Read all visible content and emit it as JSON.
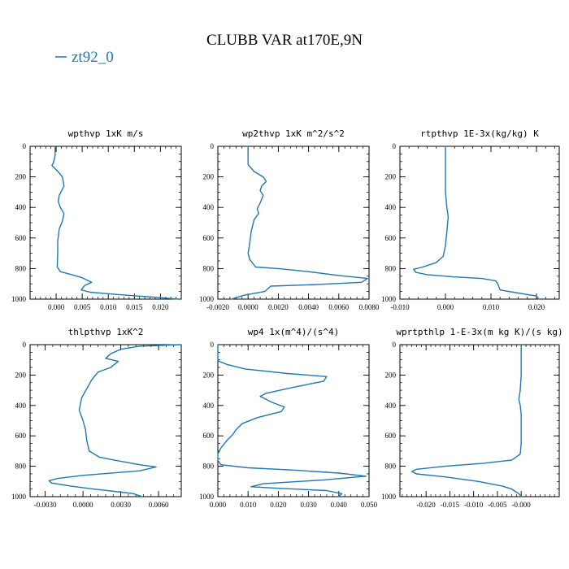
{
  "title": "CLUBB VAR at170E,9N",
  "legend": [
    {
      "label": "zt92_0",
      "color": "#1f77b4"
    }
  ],
  "chart_data": [
    {
      "type": "line",
      "title": "wpthvp  1xK m/s",
      "xlim": [
        -0.005,
        0.024
      ],
      "ylim": [
        0,
        1000
      ],
      "xticks": [
        0.0,
        0.005,
        0.01,
        0.015,
        0.02
      ],
      "xtick_labels": [
        "0.000",
        "0.005",
        "0.010",
        "0.015",
        "0.020"
      ],
      "yticks": [
        0,
        200,
        400,
        600,
        800,
        1000
      ],
      "series": [
        {
          "color": "#1f77b4",
          "points": [
            [
              -0.0002,
              0
            ],
            [
              -0.0002,
              60
            ],
            [
              -0.0005,
              105
            ],
            [
              -0.0008,
              125
            ],
            [
              0.0002,
              160
            ],
            [
              0.0012,
              200
            ],
            [
              0.0015,
              260
            ],
            [
              0.0006,
              320
            ],
            [
              0.0004,
              360
            ],
            [
              0.0008,
              400
            ],
            [
              0.0015,
              440
            ],
            [
              0.0012,
              490
            ],
            [
              0.0006,
              540
            ],
            [
              0.0003,
              620
            ],
            [
              0.0003,
              700
            ],
            [
              0.0002,
              790
            ],
            [
              0.0008,
              820
            ],
            [
              0.003,
              840
            ],
            [
              0.005,
              860
            ],
            [
              0.0068,
              890
            ],
            [
              0.0055,
              910
            ],
            [
              0.0048,
              940
            ],
            [
              0.0065,
              955
            ],
            [
              0.012,
              970
            ],
            [
              0.018,
              985
            ],
            [
              0.0235,
              1000
            ]
          ]
        }
      ]
    },
    {
      "type": "line",
      "title": "wp2thvp  1xK m^2/s^2",
      "xlim": [
        -0.002,
        0.008
      ],
      "ylim": [
        0,
        1000
      ],
      "xticks": [
        -0.002,
        0.0,
        0.002,
        0.004,
        0.006,
        0.008
      ],
      "xtick_labels": [
        "-0.0020",
        "0.0000",
        "0.0020",
        "0.0040",
        "0.0060",
        "0.0080"
      ],
      "yticks": [
        0,
        200,
        400,
        600,
        800,
        1000
      ],
      "series": [
        {
          "color": "#1f77b4",
          "points": [
            [
              0.0,
              0
            ],
            [
              0.0,
              60
            ],
            [
              0.0,
              120
            ],
            [
              0.0004,
              165
            ],
            [
              0.001,
              200
            ],
            [
              0.0012,
              230
            ],
            [
              0.0009,
              260
            ],
            [
              0.0008,
              290
            ],
            [
              0.001,
              320
            ],
            [
              0.0008,
              370
            ],
            [
              0.0006,
              410
            ],
            [
              0.0007,
              440
            ],
            [
              0.0004,
              480
            ],
            [
              0.0002,
              560
            ],
            [
              0.0001,
              640
            ],
            [
              0.0,
              700
            ],
            [
              0.0001,
              740
            ],
            [
              0.0005,
              790
            ],
            [
              0.002,
              800
            ],
            [
              0.004,
              820
            ],
            [
              0.006,
              845
            ],
            [
              0.0079,
              865
            ],
            [
              0.0075,
              890
            ],
            [
              0.0045,
              905
            ],
            [
              0.0015,
              915
            ],
            [
              0.0011,
              950
            ],
            [
              -0.0003,
              975
            ],
            [
              -0.0011,
              1000
            ]
          ]
        }
      ]
    },
    {
      "type": "line",
      "title": "rtpthvp  1E-3x(kg/kg) K",
      "xlim": [
        -0.01,
        0.025
      ],
      "ylim": [
        0,
        1000
      ],
      "xticks": [
        -0.01,
        0.0,
        0.01,
        0.02
      ],
      "xtick_labels": [
        "-0.010",
        "0.000",
        "0.010",
        "0.020"
      ],
      "yticks": [
        0,
        200,
        400,
        600,
        800,
        1000
      ],
      "series": [
        {
          "color": "#1f77b4",
          "points": [
            [
              0.0,
              0
            ],
            [
              0.0,
              100
            ],
            [
              0.0,
              200
            ],
            [
              0.0,
              300
            ],
            [
              0.0003,
              400
            ],
            [
              0.0006,
              460
            ],
            [
              0.0003,
              560
            ],
            [
              0.0,
              650
            ],
            [
              -0.0005,
              720
            ],
            [
              -0.002,
              760
            ],
            [
              -0.005,
              790
            ],
            [
              -0.007,
              805
            ],
            [
              -0.0065,
              825
            ],
            [
              -0.004,
              840
            ],
            [
              0.002,
              855
            ],
            [
              0.008,
              865
            ],
            [
              0.011,
              880
            ],
            [
              0.0115,
              900
            ],
            [
              0.012,
              940
            ],
            [
              0.016,
              960
            ],
            [
              0.02,
              980
            ],
            [
              0.0205,
              1000
            ]
          ]
        }
      ]
    },
    {
      "type": "line",
      "title": "thlpthvp  1xK^2",
      "xlim": [
        -0.0042,
        0.0078
      ],
      "ylim": [
        0,
        1000
      ],
      "xticks": [
        -0.003,
        0.0,
        0.003,
        0.006
      ],
      "xtick_labels": [
        "-0.0030",
        "0.0000",
        "0.0030",
        "0.0060"
      ],
      "yticks": [
        0,
        200,
        400,
        600,
        800,
        1000
      ],
      "series": [
        {
          "color": "#1f77b4",
          "points": [
            [
              0.0077,
              0
            ],
            [
              0.0045,
              10
            ],
            [
              0.003,
              30
            ],
            [
              0.0022,
              60
            ],
            [
              0.0018,
              90
            ],
            [
              0.0028,
              110
            ],
            [
              0.0022,
              150
            ],
            [
              0.0012,
              180
            ],
            [
              0.0007,
              230
            ],
            [
              0.0003,
              290
            ],
            [
              -0.0001,
              350
            ],
            [
              -0.0003,
              430
            ],
            [
              0.0,
              500
            ],
            [
              0.0002,
              560
            ],
            [
              0.0003,
              630
            ],
            [
              0.0005,
              700
            ],
            [
              0.0013,
              740
            ],
            [
              0.0025,
              760
            ],
            [
              0.0045,
              790
            ],
            [
              0.0058,
              805
            ],
            [
              0.0045,
              830
            ],
            [
              0.0,
              860
            ],
            [
              -0.002,
              880
            ],
            [
              -0.0027,
              895
            ],
            [
              -0.0025,
              910
            ],
            [
              -0.001,
              930
            ],
            [
              0.0008,
              950
            ],
            [
              0.0025,
              965
            ],
            [
              0.004,
              980
            ],
            [
              0.0047,
              1000
            ]
          ]
        }
      ]
    },
    {
      "type": "line",
      "title": "wp4  1x(m^4)/(s^4)",
      "xlim": [
        0.0,
        0.05
      ],
      "ylim": [
        0,
        1000
      ],
      "xticks": [
        0.0,
        0.01,
        0.02,
        0.03,
        0.04,
        0.05
      ],
      "xtick_labels": [
        "0.000",
        "0.010",
        "0.020",
        "0.030",
        "0.040",
        "0.050"
      ],
      "yticks": [
        0,
        200,
        400,
        600,
        800,
        1000
      ],
      "series": [
        {
          "color": "#1f77b4",
          "points": [
            [
              0.0,
              0
            ],
            [
              0.0,
              100
            ],
            [
              0.0005,
              110
            ],
            [
              0.003,
              130
            ],
            [
              0.009,
              160
            ],
            [
              0.023,
              190
            ],
            [
              0.036,
              210
            ],
            [
              0.035,
              240
            ],
            [
              0.025,
              280
            ],
            [
              0.016,
              320
            ],
            [
              0.014,
              340
            ],
            [
              0.018,
              380
            ],
            [
              0.022,
              410
            ],
            [
              0.021,
              440
            ],
            [
              0.013,
              480
            ],
            [
              0.008,
              520
            ],
            [
              0.006,
              560
            ],
            [
              0.005,
              590
            ],
            [
              0.003,
              630
            ],
            [
              0.001,
              680
            ],
            [
              0.0,
              720
            ],
            [
              0.0,
              760
            ],
            [
              0.001,
              790
            ],
            [
              0.01,
              810
            ],
            [
              0.025,
              825
            ],
            [
              0.04,
              845
            ],
            [
              0.049,
              865
            ],
            [
              0.035,
              890
            ],
            [
              0.015,
              915
            ],
            [
              0.011,
              935
            ],
            [
              0.02,
              945
            ],
            [
              0.036,
              960
            ],
            [
              0.041,
              980
            ],
            [
              0.04,
              1000
            ]
          ]
        }
      ]
    },
    {
      "type": "line",
      "title": "wprtpthlp  1-E-3x(m kg K)/(s kg)",
      "xlim": [
        -0.0255,
        0.008
      ],
      "ylim": [
        0,
        1000
      ],
      "xticks": [
        -0.02,
        -0.015,
        -0.01,
        -0.005,
        0.0
      ],
      "xtick_labels": [
        "-0.020",
        "-0.015",
        "-0.010",
        "-0.005",
        "-0.000"
      ],
      "yticks": [
        0,
        200,
        400,
        600,
        800,
        1000
      ],
      "series": [
        {
          "color": "#1f77b4",
          "points": [
            [
              0.0,
              0
            ],
            [
              0.0,
              100
            ],
            [
              0.0,
              200
            ],
            [
              -0.0002,
              300
            ],
            [
              -0.0005,
              360
            ],
            [
              -0.0002,
              400
            ],
            [
              0.0,
              460
            ],
            [
              0.0,
              560
            ],
            [
              0.0,
              650
            ],
            [
              -0.0002,
              720
            ],
            [
              -0.002,
              760
            ],
            [
              -0.008,
              780
            ],
            [
              -0.016,
              800
            ],
            [
              -0.022,
              820
            ],
            [
              -0.023,
              835
            ],
            [
              -0.022,
              850
            ],
            [
              -0.016,
              870
            ],
            [
              -0.009,
              900
            ],
            [
              -0.004,
              930
            ],
            [
              -0.002,
              950
            ],
            [
              -0.0005,
              980
            ],
            [
              0.0,
              1000
            ]
          ]
        }
      ]
    }
  ]
}
